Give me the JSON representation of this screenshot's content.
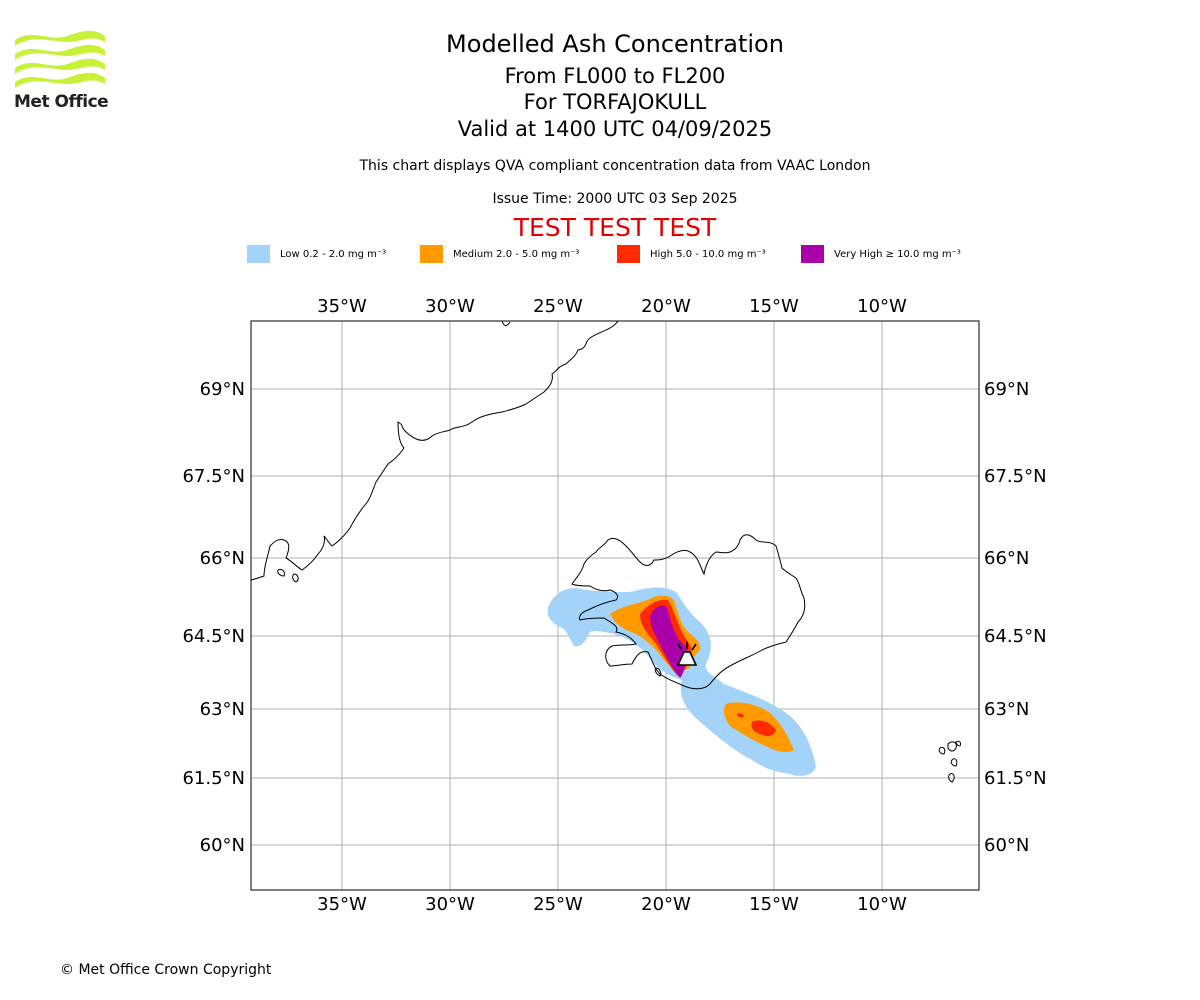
{
  "logo": {
    "text": "Met Office",
    "color": "#c8f23a"
  },
  "title": {
    "line1": "Modelled Ash Concentration",
    "line2": "From FL000 to FL200",
    "line3": "For TORFAJOKULL",
    "line4": "Valid at 1400 UTC 04/09/2025"
  },
  "subtitle": "This chart displays QVA compliant concentration data from VAAC London",
  "issue_time": "Issue Time: 2000 UTC 03 Sep 2025",
  "test_banner": "TEST TEST TEST",
  "legend": [
    {
      "label": "Low 0.2 - 2.0 mg m⁻³",
      "color": "#a4d3fa"
    },
    {
      "label": "Medium 2.0 - 5.0 mg m⁻³",
      "color": "#ff9a00"
    },
    {
      "label": "High 5.0 - 10.0 mg m⁻³",
      "color": "#ff2a00"
    },
    {
      "label": "Very High ≥ 10.0 mg m⁻³",
      "color": "#aa00aa"
    }
  ],
  "map": {
    "longitude_labels": [
      "35°W",
      "30°W",
      "25°W",
      "20°W",
      "15°W",
      "10°W"
    ],
    "latitude_labels": [
      "69°N",
      "67.5°N",
      "66°N",
      "64.5°N",
      "63°N",
      "61.5°N",
      "60°N"
    ],
    "volcano_icon": "volcano-icon",
    "grid": true
  },
  "copyright": "© Met Office Crown Copyright"
}
